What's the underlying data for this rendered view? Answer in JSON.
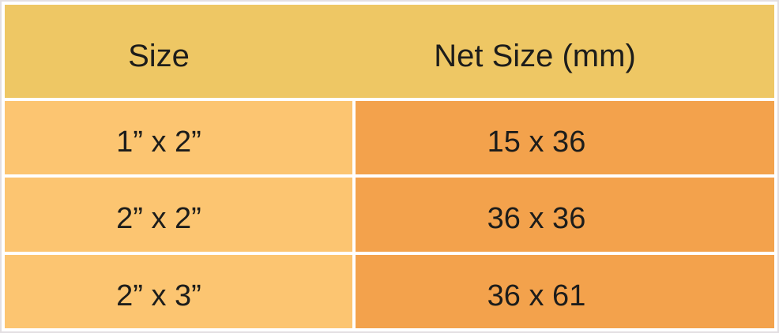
{
  "chart_data": {
    "type": "table",
    "title": "",
    "columns": [
      "Size",
      "Net Size (mm)"
    ],
    "rows": [
      [
        "1” x 2”",
        "15 x 36"
      ],
      [
        "2” x 2”",
        "36 x 36"
      ],
      [
        "2” x 3”",
        "36 x 61"
      ]
    ],
    "layout": {
      "header_position": "top",
      "gridlines": "white",
      "column_count": 2,
      "data_row_count": 3
    },
    "colors": {
      "header_background": "#eec764",
      "size_column_background": "#fcc571",
      "net_column_background": "#f3a24c",
      "gridline": "#ffffff",
      "outer_border": "#e3dfe2",
      "text": "#1d1d1b"
    }
  }
}
